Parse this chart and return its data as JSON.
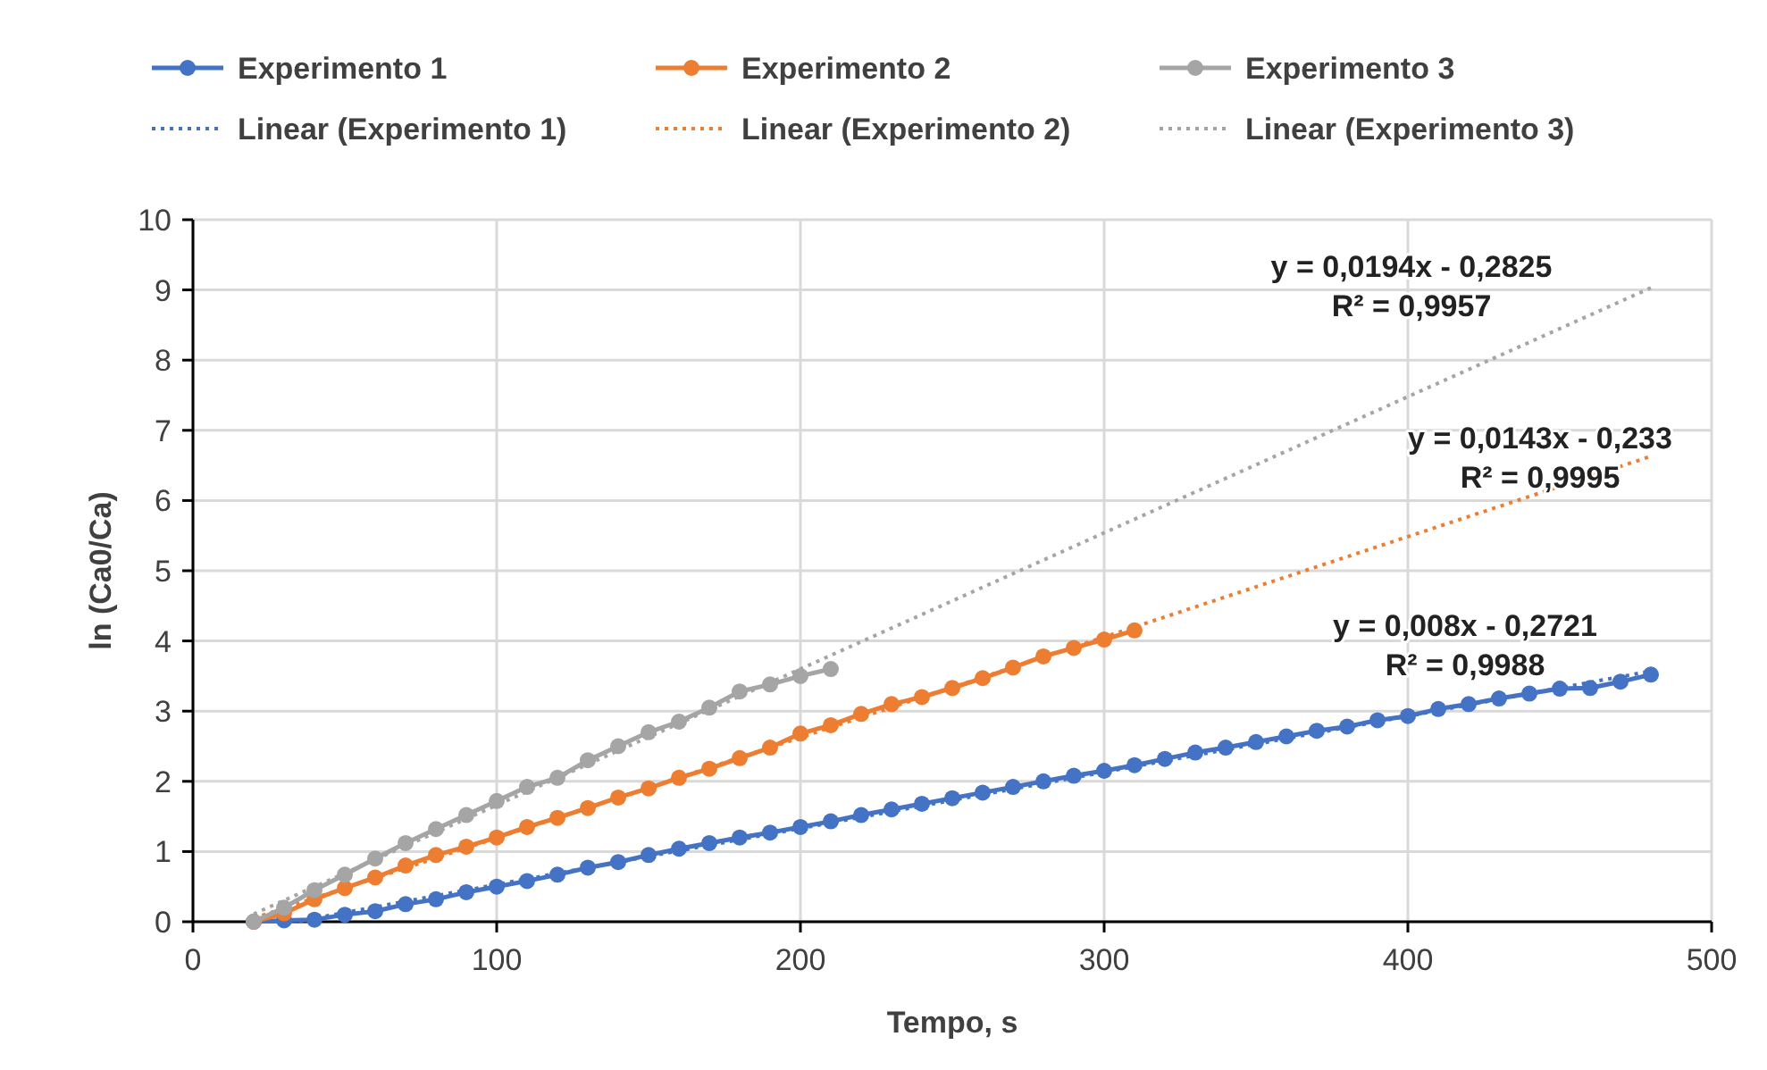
{
  "chart_data": {
    "type": "line",
    "xlabel": "Tempo, s",
    "ylabel": "ln (Ca0/Ca)",
    "xlim": [
      0,
      500
    ],
    "xticks": [
      0,
      100,
      200,
      300,
      400,
      500
    ],
    "ylim": [
      0,
      10
    ],
    "yticks": [
      0,
      1,
      2,
      3,
      4,
      5,
      6,
      7,
      8,
      9,
      10
    ],
    "grid": true,
    "legend": "top",
    "marker": "circle",
    "series": [
      {
        "name": "Experimento 1",
        "color": "#4472c4",
        "x": [
          20,
          30,
          40,
          50,
          60,
          70,
          80,
          90,
          100,
          110,
          120,
          130,
          140,
          150,
          160,
          170,
          180,
          190,
          200,
          210,
          220,
          230,
          240,
          250,
          260,
          270,
          280,
          290,
          300,
          310,
          320,
          330,
          340,
          350,
          360,
          370,
          380,
          390,
          400,
          410,
          420,
          430,
          440,
          450,
          460,
          470,
          480
        ],
        "values": [
          0,
          0.02,
          0.03,
          0.1,
          0.15,
          0.25,
          0.32,
          0.42,
          0.5,
          0.58,
          0.67,
          0.77,
          0.85,
          0.95,
          1.04,
          1.12,
          1.2,
          1.27,
          1.35,
          1.43,
          1.52,
          1.6,
          1.68,
          1.76,
          1.84,
          1.92,
          2.0,
          2.08,
          2.15,
          2.23,
          2.32,
          2.41,
          2.48,
          2.56,
          2.64,
          2.72,
          2.78,
          2.87,
          2.93,
          3.03,
          3.1,
          3.18,
          3.25,
          3.32,
          3.33,
          3.42,
          3.52
        ]
      },
      {
        "name": "Experimento 2",
        "color": "#ed7d31",
        "x": [
          20,
          30,
          40,
          50,
          60,
          70,
          80,
          90,
          100,
          110,
          120,
          130,
          140,
          150,
          160,
          170,
          180,
          190,
          200,
          210,
          220,
          230,
          240,
          250,
          260,
          270,
          280,
          290,
          300,
          310
        ],
        "values": [
          0,
          0.12,
          0.32,
          0.48,
          0.63,
          0.8,
          0.95,
          1.07,
          1.2,
          1.35,
          1.48,
          1.62,
          1.77,
          1.9,
          2.05,
          2.18,
          2.33,
          2.48,
          2.68,
          2.8,
          2.96,
          3.1,
          3.2,
          3.33,
          3.47,
          3.62,
          3.78,
          3.9,
          4.02,
          4.15
        ]
      },
      {
        "name": "Experimento 3",
        "color": "#a5a5a5",
        "x": [
          20,
          30,
          40,
          50,
          60,
          70,
          80,
          90,
          100,
          110,
          120,
          130,
          140,
          150,
          160,
          170,
          180,
          190,
          200,
          210
        ],
        "values": [
          0,
          0.2,
          0.45,
          0.67,
          0.9,
          1.12,
          1.32,
          1.52,
          1.72,
          1.92,
          2.05,
          2.3,
          2.5,
          2.7,
          2.85,
          3.05,
          3.28,
          3.38,
          3.5,
          3.6
        ]
      },
      {
        "name": "Linear (Experimento 1)",
        "color": "#4472c4",
        "type": "line",
        "line_style": "dotted",
        "marker": "none",
        "x": [
          35,
          480
        ],
        "values": [
          0.01,
          3.57
        ]
      },
      {
        "name": "Linear (Experimento 2)",
        "color": "#ed7d31",
        "type": "line",
        "line_style": "dotted",
        "marker": "none",
        "x": [
          20,
          480
        ],
        "values": [
          0.05,
          6.63
        ]
      },
      {
        "name": "Linear (Experimento 3)",
        "color": "#a5a5a5",
        "type": "line",
        "line_style": "dotted",
        "marker": "none",
        "x": [
          20,
          480
        ],
        "values": [
          0.11,
          9.03
        ]
      }
    ],
    "annotations": [
      "y = 0,0194x - 0,2825\nR² = 0,9957",
      "y = 0,0143x - 0,233\nR² = 0,9995",
      "y = 0,008x - 0,2721\nR² = 0,9988"
    ]
  }
}
